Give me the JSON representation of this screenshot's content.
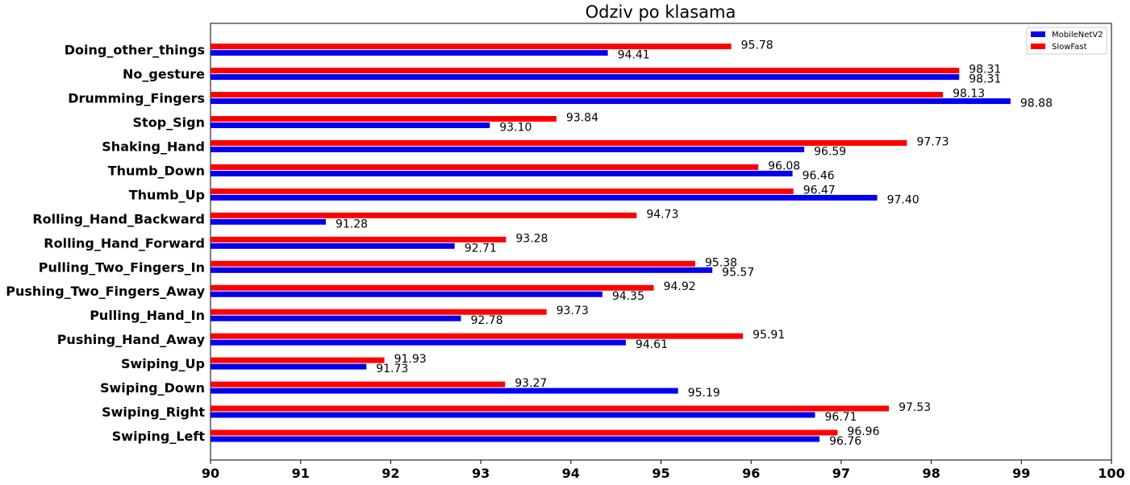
{
  "chart_data": {
    "type": "bar",
    "orientation": "horizontal",
    "title": "Odziv po klasama",
    "xlim": [
      90,
      100
    ],
    "xticks": [
      "90",
      "91",
      "92",
      "93",
      "94",
      "95",
      "96",
      "97",
      "98",
      "99",
      "100"
    ],
    "grid": false,
    "legend_position": "top-right",
    "categories": [
      "Swiping_Left",
      "Swiping_Right",
      "Swiping_Down",
      "Swiping_Up",
      "Pushing_Hand_Away",
      "Pulling_Hand_In",
      "Pushing_Two_Fingers_Away",
      "Pulling_Two_Fingers_In",
      "Rolling_Hand_Forward",
      "Rolling_Hand_Backward",
      "Thumb_Up",
      "Thumb_Down",
      "Shaking_Hand",
      "Stop_Sign",
      "Drumming_Fingers",
      "No_gesture",
      "Doing_other_things"
    ],
    "series": [
      {
        "name": "MobileNetV2",
        "color": "#0000ee",
        "values": [
          96.76,
          96.71,
          95.19,
          91.73,
          94.61,
          92.78,
          94.35,
          95.57,
          92.71,
          91.28,
          97.4,
          96.46,
          96.59,
          93.1,
          98.88,
          98.31,
          94.41
        ],
        "labels": [
          "96.76",
          "96.71",
          "95.19",
          "91.73",
          "94.61",
          "92.78",
          "94.35",
          "95.57",
          "92.71",
          "91.28",
          "97.40",
          "96.46",
          "96.59",
          "93.10",
          "98.88",
          "98.31",
          "94.41"
        ]
      },
      {
        "name": "SlowFast",
        "color": "#ff0000",
        "values": [
          96.96,
          97.53,
          93.27,
          91.93,
          95.91,
          93.73,
          94.92,
          95.38,
          93.28,
          94.73,
          96.47,
          96.08,
          97.73,
          93.84,
          98.13,
          98.31,
          95.78
        ],
        "labels": [
          "96.96",
          "97.53",
          "93.27",
          "91.93",
          "95.91",
          "93.73",
          "94.92",
          "95.38",
          "93.28",
          "94.73",
          "96.47",
          "96.08",
          "97.73",
          "93.84",
          "98.13",
          "98.31",
          "95.78"
        ]
      }
    ]
  }
}
